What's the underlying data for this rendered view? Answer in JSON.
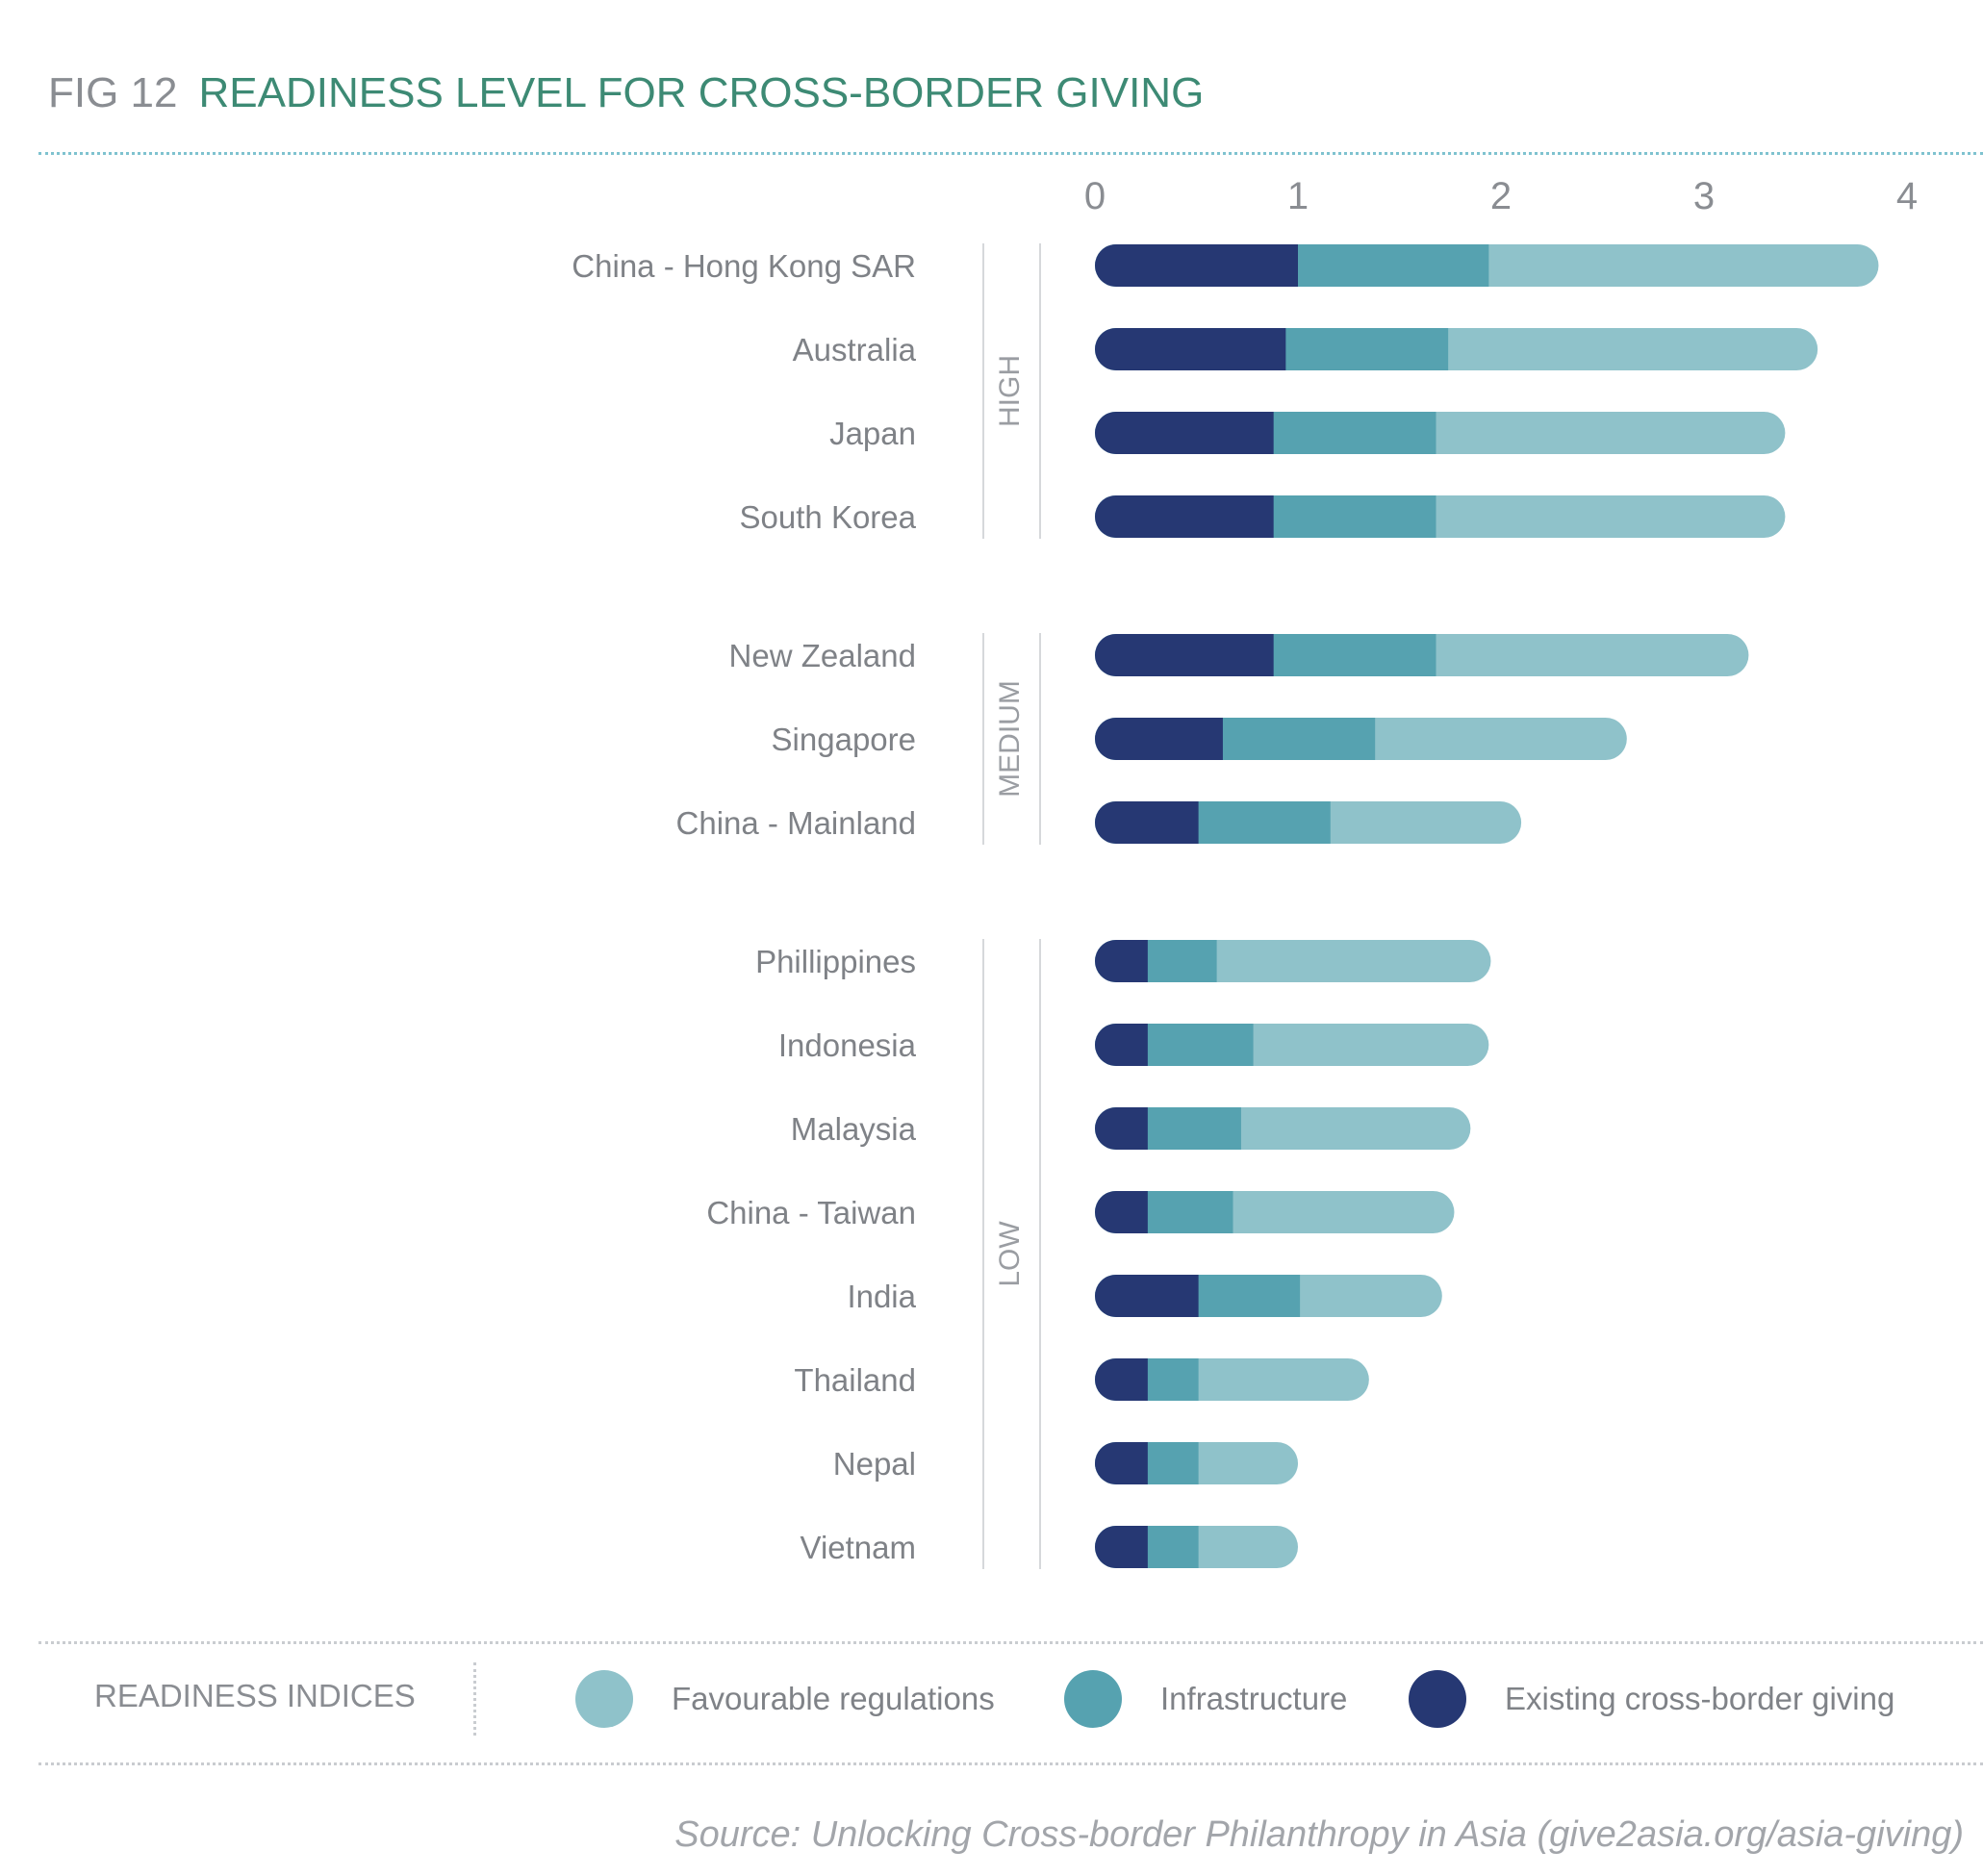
{
  "header": {
    "fig_label": "FIG 12",
    "title": "READINESS LEVEL FOR CROSS-BORDER GIVING"
  },
  "colors": {
    "title_green": "#3d8a74",
    "favourable_regulations": "#8fc2ca",
    "infrastructure": "#56a2b0",
    "existing_giving": "#263873"
  },
  "chart_data": {
    "type": "bar",
    "orientation": "horizontal",
    "stacked": true,
    "xlim": [
      0,
      4
    ],
    "x_ticks": [
      "0",
      "1",
      "2",
      "3",
      "4"
    ],
    "grid": false,
    "legend_position": "bottom",
    "groups": [
      {
        "label": "HIGH",
        "categories": [
          "China - Hong Kong SAR",
          "Australia",
          "Japan",
          "South Korea"
        ]
      },
      {
        "label": "MEDIUM",
        "categories": [
          "New Zealand",
          "Singapore",
          "China - Mainland"
        ]
      },
      {
        "label": "LOW",
        "categories": [
          "Phillippines",
          "Indonesia",
          "Malaysia",
          "China - Taiwan",
          "India",
          "Thailand",
          "Nepal",
          "Vietnam"
        ]
      }
    ],
    "categories": [
      "China - Hong Kong SAR",
      "Australia",
      "Japan",
      "South Korea",
      "New Zealand",
      "Singapore",
      "China - Mainland",
      "Phillippines",
      "Indonesia",
      "Malaysia",
      "China - Taiwan",
      "India",
      "Thailand",
      "Nepal",
      "Vietnam"
    ],
    "series": [
      {
        "name": "Existing cross-border giving",
        "color": "#263873",
        "values": [
          1.0,
          0.94,
          0.88,
          0.88,
          0.88,
          0.63,
          0.51,
          0.26,
          0.26,
          0.26,
          0.26,
          0.51,
          0.26,
          0.26,
          0.26
        ]
      },
      {
        "name": "Infrastructure",
        "color": "#56a2b0",
        "values": [
          0.94,
          0.8,
          0.8,
          0.8,
          0.8,
          0.75,
          0.65,
          0.34,
          0.52,
          0.46,
          0.42,
          0.5,
          0.25,
          0.25,
          0.25
        ]
      },
      {
        "name": "Favourable regulations",
        "color": "#8fc2ca",
        "values": [
          1.92,
          1.82,
          1.72,
          1.72,
          1.54,
          1.24,
          0.94,
          1.35,
          1.16,
          1.13,
          1.09,
          0.7,
          0.84,
          0.49,
          0.49
        ]
      }
    ]
  },
  "legend": {
    "title": "READINESS INDICES",
    "items": [
      {
        "label": "Favourable regulations",
        "color": "#8fc2ca"
      },
      {
        "label": "Infrastructure",
        "color": "#56a2b0"
      },
      {
        "label": "Existing cross-border giving",
        "color": "#263873"
      }
    ]
  },
  "source": "Source: Unlocking Cross-border Philanthropy in Asia (give2asia.org/asia-giving)"
}
